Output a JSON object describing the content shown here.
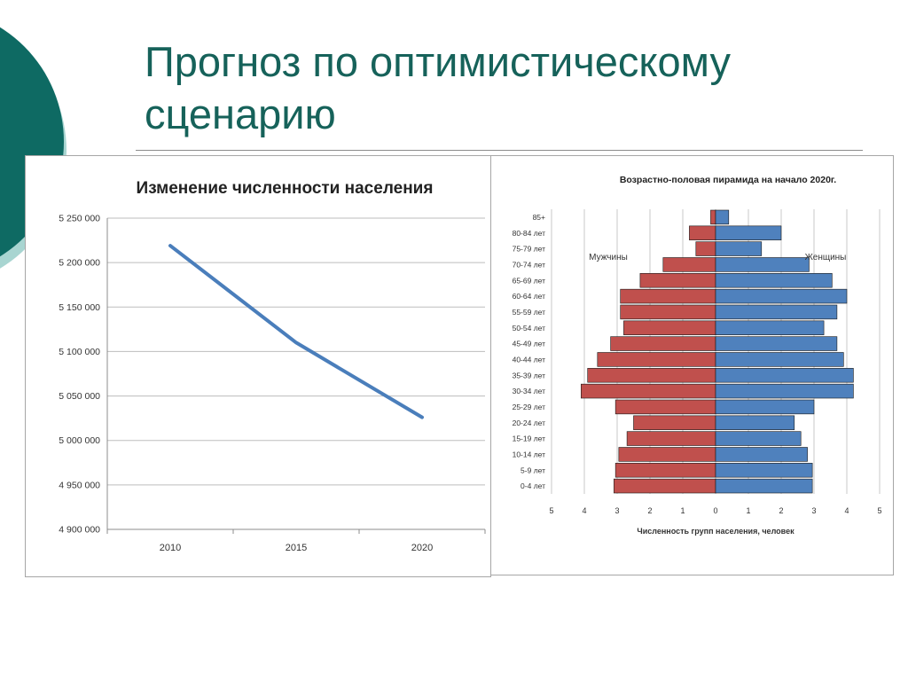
{
  "slide": {
    "title": "Прогноз по оптимистическому сценарию",
    "colors": {
      "title": "#16625a",
      "deco_dark": "#0e6a63",
      "deco_light": "#a8d5d1"
    }
  },
  "chart_data": [
    {
      "type": "line",
      "title": "Изменение численности населения",
      "categories": [
        "2010",
        "2015",
        "2020"
      ],
      "series": [
        {
          "values": [
            5219000,
            5110000,
            5026000
          ],
          "color": "#4a7ebb"
        }
      ],
      "ylim": [
        4900000,
        5250000
      ],
      "yticks": [
        5250000,
        5200000,
        5150000,
        5100000,
        5050000,
        5000000,
        4950000,
        4900000
      ],
      "ytick_labels": [
        "5 250 000",
        "5 200 000",
        "5 150 000",
        "5 100 000",
        "5 050 000",
        "5 000 000",
        "4 950 000",
        "4 900 000"
      ],
      "xlabel": "",
      "ylabel": "",
      "grid": true
    },
    {
      "type": "bar",
      "orientation": "horizontal-pyramid",
      "title": "Возрастно-половая пирамида на начало 2020г.",
      "xlabel": "Численность групп населения, человек",
      "categories": [
        "85+",
        "80-84 лет",
        "75-79 лет",
        "70-74 лет",
        "65-69 лет",
        "60-64 лет",
        "55-59 лет",
        "50-54 лет",
        "45-49 лет",
        "40-44 лет",
        "35-39 лет",
        "30-34 лет",
        "25-29 лет",
        "20-24 лет",
        "15-19 лет",
        "10-14 лет",
        "5-9 лет",
        "0-4 лет"
      ],
      "series": [
        {
          "name": "Мужчины",
          "color": "#c0504d",
          "values": [
            0.15,
            0.8,
            0.6,
            1.6,
            2.3,
            2.9,
            2.9,
            2.8,
            3.2,
            3.6,
            3.9,
            4.1,
            3.05,
            2.5,
            2.7,
            2.95,
            3.05,
            3.1
          ]
        },
        {
          "name": "Женщины",
          "color": "#4f81bd",
          "values": [
            0.4,
            2.0,
            1.4,
            2.85,
            3.55,
            4.0,
            3.7,
            3.3,
            3.7,
            3.9,
            4.2,
            4.2,
            3.0,
            2.4,
            2.6,
            2.8,
            2.95,
            2.95
          ]
        }
      ],
      "xticks": [
        5,
        4,
        3,
        2,
        1,
        0,
        1,
        2,
        3,
        4,
        5
      ],
      "xlim": [
        -5,
        5
      ],
      "grid": true
    }
  ]
}
